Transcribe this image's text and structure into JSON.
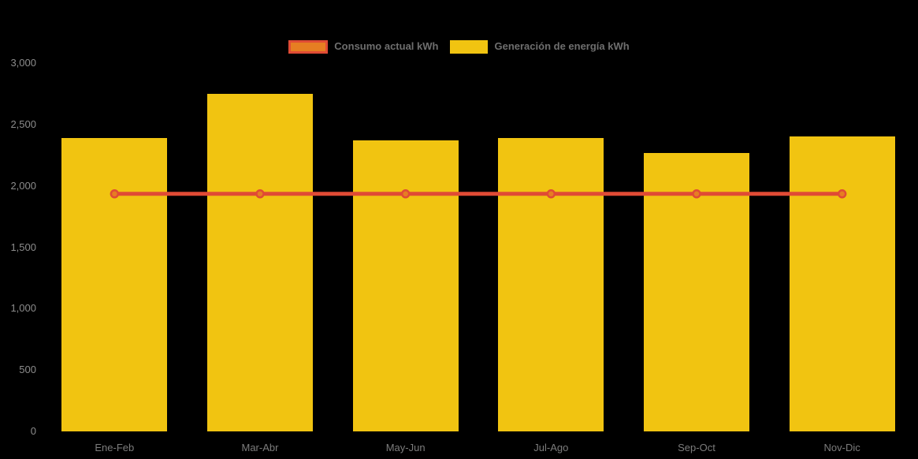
{
  "legend": {
    "position": "top"
  },
  "chart_data": {
    "type": "combo",
    "categories": [
      "Ene-Feb",
      "Mar-Abr",
      "May-Jun",
      "Jul-Ago",
      "Sep-Oct",
      "Nov-Dic"
    ],
    "series": [
      {
        "name": "Consumo actual kWh",
        "type": "line",
        "values": [
          1935,
          1935,
          1935,
          1935,
          1935,
          1935
        ],
        "color": "#E04B35",
        "marker_fill": "#E67E22"
      },
      {
        "name": "Generación de energía kWh",
        "type": "bar",
        "values": [
          2390,
          2750,
          2370,
          2390,
          2270,
          2400
        ],
        "color": "#F1C411"
      }
    ],
    "title": "",
    "xlabel": "",
    "ylabel": "",
    "ylim": [
      0,
      3000
    ],
    "y_tick_values": [
      0,
      500,
      1000,
      1500,
      2000,
      2500,
      3000
    ],
    "y_tick_labels": [
      "0",
      "500",
      "1,000",
      "1,500",
      "2,000",
      "2,500",
      "3,000"
    ],
    "grid": false,
    "legend_position": "top",
    "background": "#000000",
    "axis_text_color": "#8c8c8c"
  }
}
